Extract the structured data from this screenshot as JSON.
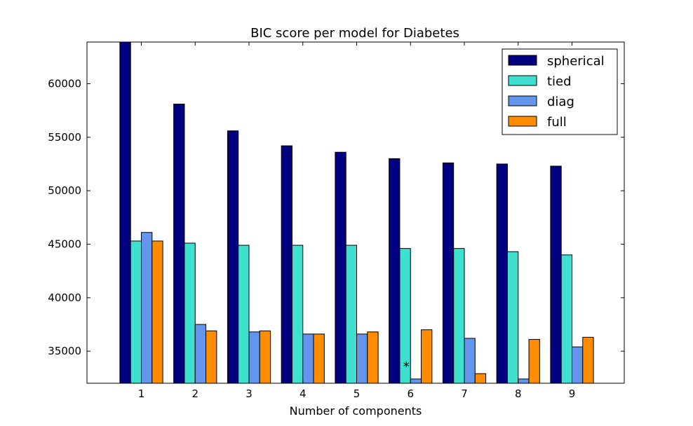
{
  "chart_data": {
    "type": "bar",
    "title": "BIC score per model for Diabetes",
    "xlabel": "Number of components",
    "ylabel": "",
    "categories": [
      "1",
      "2",
      "3",
      "4",
      "5",
      "6",
      "7",
      "8",
      "9"
    ],
    "ylim": [
      32000,
      63900
    ],
    "yticks": [
      35000,
      40000,
      45000,
      50000,
      55000,
      60000
    ],
    "ytick_labels": [
      "35000",
      "40000",
      "45000",
      "50000",
      "55000",
      "60000"
    ],
    "series": [
      {
        "name": "spherical",
        "color": "#000080",
        "values": [
          64000,
          58100,
          55600,
          54200,
          53600,
          53000,
          52600,
          52500,
          52300
        ]
      },
      {
        "name": "tied",
        "color": "#40e0d0",
        "values": [
          45300,
          45100,
          44900,
          44900,
          44900,
          44600,
          44600,
          44300,
          44000
        ]
      },
      {
        "name": "diag",
        "color": "#6495ed",
        "values": [
          46100,
          37500,
          36800,
          36600,
          36600,
          32400,
          36200,
          32400,
          35400
        ]
      },
      {
        "name": "full",
        "color": "#ff8c00",
        "values": [
          45300,
          36900,
          36900,
          36600,
          36800,
          37000,
          32900,
          36100,
          36300
        ]
      }
    ],
    "annotations": [
      {
        "text": "*",
        "category": "6"
      }
    ],
    "legend_position": "top-right",
    "grid": false
  }
}
